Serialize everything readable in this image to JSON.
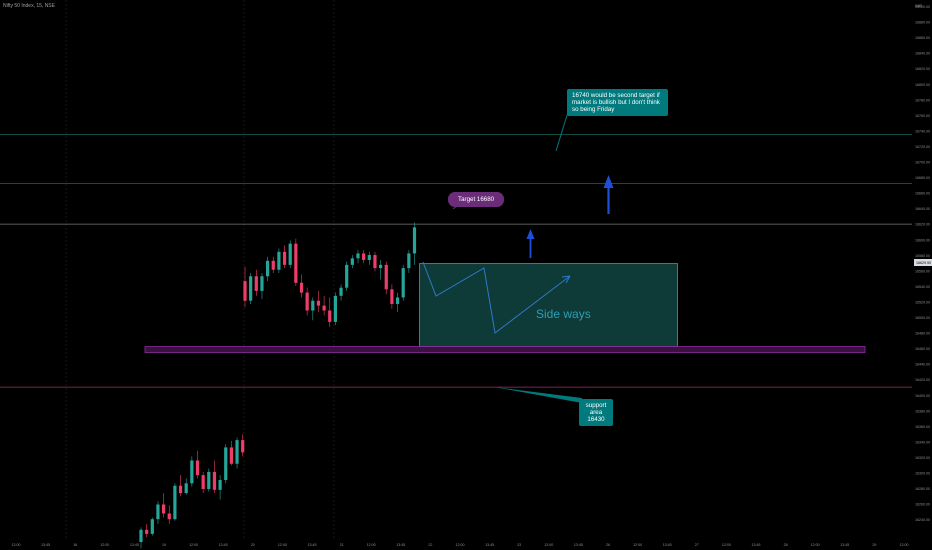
{
  "header": {
    "symbol": "Nifty 50 Index, 15, NSE",
    "currency": "INR"
  },
  "price_axis": {
    "labels": [
      "16900.00",
      "16880.00",
      "16860.00",
      "16840.00",
      "16820.00",
      "16800.00",
      "16780.00",
      "16760.00",
      "16740.00",
      "16720.00",
      "16700.00",
      "16680.00",
      "16660.00",
      "16640.00",
      "16620.00",
      "16600.00",
      "16580.00",
      "16560.00",
      "16540.00",
      "16520.00",
      "16500.00",
      "16480.00",
      "16460.00",
      "16440.00",
      "16420.00",
      "16400.00",
      "16380.00",
      "16360.00",
      "16340.00",
      "16320.00",
      "16300.00",
      "16280.00",
      "16260.00",
      "16240.00"
    ],
    "current_price": "16629.90"
  },
  "time_axis": {
    "labels": [
      "12:00",
      "13:45",
      "16",
      "12:00",
      "13:45",
      "19",
      "12:00",
      "13:45",
      "20",
      "12:00",
      "13:45",
      "21",
      "12:00",
      "13:45",
      "22",
      "12:00",
      "13:45",
      "23",
      "12:00",
      "13:45",
      "26",
      "12:00",
      "13:45",
      "27",
      "12:00",
      "13:45",
      "28",
      "12:00",
      "13:45",
      "29",
      "12:00"
    ]
  },
  "annotations": {
    "second_target": "16740 would be second target if market is bullish but I don't think so being Friday",
    "target": "Target 16680",
    "sideways": "Side ways",
    "support": "support area 16430"
  },
  "colors": {
    "up": "#26a69a",
    "down": "#ef3d6b",
    "teal_box": "#0e3b37",
    "support_band": "#3a1140",
    "callout_teal": "#007a7d",
    "callout_purple": "#6b2d7a",
    "arrow": "#1e4fd8"
  },
  "chart_data": {
    "type": "candlestick",
    "title": "",
    "ylim": [
      16240,
      16900
    ],
    "horizontal_levels": [
      16740,
      16680,
      16630,
      16430
    ],
    "sideways_range": [
      16470,
      16630
    ],
    "support_band": [
      16465,
      16472
    ],
    "series": [
      {
        "segment": "Jun 19 - Jun 20",
        "candles": [
          [
            16240,
            16258,
            16232,
            16255
          ],
          [
            16255,
            16262,
            16246,
            16250
          ],
          [
            16250,
            16270,
            16248,
            16268
          ],
          [
            16268,
            16290,
            16262,
            16286
          ],
          [
            16286,
            16300,
            16270,
            16275
          ],
          [
            16275,
            16285,
            16262,
            16268
          ],
          [
            16268,
            16312,
            16266,
            16309
          ],
          [
            16309,
            16322,
            16296,
            16300
          ],
          [
            16300,
            16318,
            16298,
            16312
          ],
          [
            16312,
            16345,
            16308,
            16340
          ],
          [
            16340,
            16352,
            16318,
            16322
          ],
          [
            16322,
            16326,
            16300,
            16305
          ],
          [
            16305,
            16330,
            16302,
            16326
          ],
          [
            16326,
            16340,
            16300,
            16304
          ],
          [
            16304,
            16322,
            16292,
            16316
          ],
          [
            16316,
            16360,
            16312,
            16356
          ],
          [
            16356,
            16364,
            16334,
            16336
          ],
          [
            16336,
            16368,
            16330,
            16365
          ],
          [
            16365,
            16372,
            16345,
            16350
          ]
        ]
      },
      {
        "segment": "Jun 21 - Jun 22",
        "candles": [
          [
            16560,
            16578,
            16528,
            16536
          ],
          [
            16536,
            16570,
            16532,
            16566
          ],
          [
            16566,
            16574,
            16542,
            16548
          ],
          [
            16548,
            16570,
            16538,
            16566
          ],
          [
            16566,
            16590,
            16560,
            16585
          ],
          [
            16585,
            16590,
            16570,
            16574
          ],
          [
            16574,
            16600,
            16570,
            16596
          ],
          [
            16596,
            16604,
            16576,
            16580
          ],
          [
            16580,
            16610,
            16576,
            16606
          ],
          [
            16606,
            16612,
            16554,
            16558
          ],
          [
            16558,
            16568,
            16540,
            16546
          ],
          [
            16546,
            16552,
            16518,
            16524
          ],
          [
            16524,
            16540,
            16512,
            16536
          ],
          [
            16536,
            16548,
            16522,
            16530
          ],
          [
            16530,
            16542,
            16518,
            16524
          ],
          [
            16524,
            16540,
            16504,
            16510
          ],
          [
            16510,
            16546,
            16506,
            16542
          ],
          [
            16542,
            16556,
            16536,
            16552
          ],
          [
            16552,
            16584,
            16548,
            16580
          ],
          [
            16580,
            16592,
            16576,
            16588
          ],
          [
            16588,
            16598,
            16582,
            16594
          ],
          [
            16594,
            16598,
            16582,
            16586
          ],
          [
            16586,
            16596,
            16580,
            16592
          ],
          [
            16592,
            16596,
            16572,
            16576
          ],
          [
            16576,
            16586,
            16562,
            16580
          ],
          [
            16580,
            16584,
            16544,
            16550
          ],
          [
            16550,
            16556,
            16526,
            16532
          ],
          [
            16532,
            16546,
            16522,
            16540
          ],
          [
            16540,
            16580,
            16536,
            16576
          ],
          [
            16576,
            16598,
            16570,
            16594
          ],
          [
            16594,
            16632,
            16580,
            16626
          ]
        ]
      }
    ]
  }
}
